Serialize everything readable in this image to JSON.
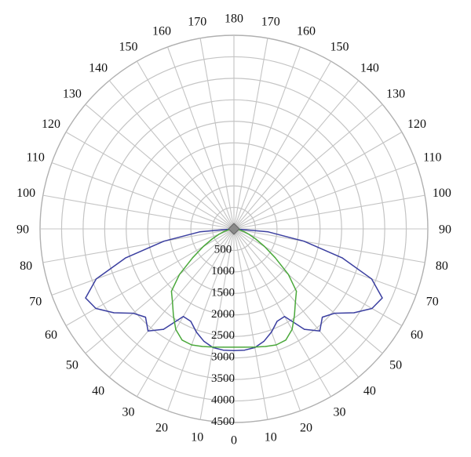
{
  "chart_data": {
    "type": "polar-line",
    "angle_unit": "degrees",
    "angle_tick_labels_left": [
      "180",
      "170",
      "160",
      "150",
      "140",
      "130",
      "120",
      "110",
      "100",
      "90",
      "80",
      "70",
      "60",
      "50",
      "40",
      "30",
      "20",
      "10",
      "0"
    ],
    "angle_tick_labels_right": [
      "170",
      "160",
      "150",
      "140",
      "130",
      "120",
      "110",
      "100",
      "90",
      "80",
      "70",
      "60",
      "50",
      "40",
      "30",
      "20",
      "10"
    ],
    "radial_ticks": [
      "500",
      "1000",
      "1500",
      "2000",
      "2500",
      "3000",
      "3500",
      "4000",
      "4500"
    ],
    "rlim": [
      0,
      4500
    ],
    "grid": true,
    "series": [
      {
        "color": "#3b3fa0",
        "angles": [
          0,
          5,
          10,
          15,
          20,
          25,
          30,
          35,
          40,
          45,
          50,
          55,
          60,
          65,
          70,
          75,
          80,
          85,
          90
        ],
        "values": [
          2830,
          2830,
          2800,
          2700,
          2550,
          2370,
          2350,
          2850,
          3100,
          2900,
          3050,
          3400,
          3700,
          3800,
          3400,
          2600,
          1650,
          800,
          30
        ]
      },
      {
        "color": "#4aa83a",
        "angles": [
          0,
          5,
          10,
          15,
          20,
          25,
          30,
          35,
          40,
          45,
          50,
          55,
          60,
          65,
          70,
          75,
          80,
          85,
          90
        ],
        "values": [
          2750,
          2760,
          2790,
          2830,
          2870,
          2850,
          2700,
          2450,
          2220,
          2050,
          1650,
          1170,
          820,
          560,
          370,
          240,
          130,
          60,
          0
        ]
      }
    ]
  }
}
